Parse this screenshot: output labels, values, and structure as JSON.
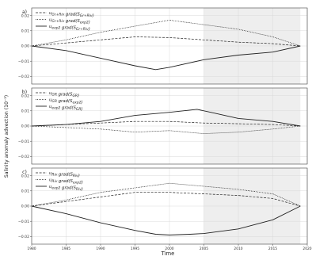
{
  "figure": {
    "ylabel": "Salinity anomaly advection (10⁻³)",
    "xlabel": "Time",
    "shade_color": "#eeeeee",
    "line_color": "#222222"
  },
  "chart_data": [
    {
      "type": "line",
      "panel_label": "a)",
      "x_range": [
        1980,
        2020
      ],
      "ylim": [
        -0.025,
        0.025
      ],
      "yticks": [
        -0.02,
        -0.01,
        0.0,
        0.01,
        0.02
      ],
      "ytick_labels": [
        "−0.02",
        "−0.01",
        "0.00",
        "0.01",
        "0.02"
      ],
      "grid": true,
      "shaded_x": [
        2005,
        2019
      ],
      "legend_position": "upper-left",
      "series": [
        {
          "name": "u_{Gr+Riv} grad(S_{Gr+Riv})",
          "style": "dashed",
          "x": [
            1980,
            1985,
            1990,
            1995,
            2000,
            2005,
            2010,
            2015,
            2019
          ],
          "y": [
            0.0,
            0.002,
            0.004,
            0.006,
            0.0055,
            0.004,
            0.0025,
            0.0015,
            0.0
          ]
        },
        {
          "name": "u_{Gr+Riv} grad(S_{exp2})",
          "style": "dotted",
          "x": [
            1980,
            1985,
            1990,
            1995,
            2000,
            2005,
            2010,
            2015,
            2019
          ],
          "y": [
            0.0,
            0.004,
            0.009,
            0.013,
            0.017,
            0.014,
            0.011,
            0.006,
            0.0
          ]
        },
        {
          "name": "u_{exp2} grad(S_{Gr+Riv})",
          "style": "solid",
          "x": [
            1980,
            1985,
            1990,
            1995,
            1998,
            2000,
            2005,
            2010,
            2015,
            2019
          ],
          "y": [
            0.0,
            -0.003,
            -0.008,
            -0.013,
            -0.0155,
            -0.014,
            -0.009,
            -0.006,
            -0.004,
            0.0
          ]
        }
      ]
    },
    {
      "type": "line",
      "panel_label": "b)",
      "x_range": [
        1980,
        2020
      ],
      "ylim": [
        -0.025,
        0.025
      ],
      "yticks": [
        -0.02,
        -0.01,
        0.0,
        0.01,
        0.02
      ],
      "ytick_labels": [
        "−0.02",
        "−0.01",
        "0.00",
        "0.01",
        "0.02"
      ],
      "grid": true,
      "shaded_x": [
        2005,
        2019
      ],
      "legend_position": "upper-left",
      "series": [
        {
          "name": "u_{GR} grad(S_{GR})",
          "style": "dashed",
          "x": [
            1980,
            1985,
            1990,
            1995,
            2000,
            2005,
            2010,
            2015,
            2019
          ],
          "y": [
            0.0,
            0.001,
            0.002,
            0.003,
            0.003,
            0.002,
            0.0015,
            0.001,
            0.0
          ]
        },
        {
          "name": "u_{GR} grad(S_{exp2})",
          "style": "dotted",
          "x": [
            1980,
            1985,
            1990,
            1995,
            2000,
            2005,
            2010,
            2015,
            2019
          ],
          "y": [
            0.0,
            -0.001,
            -0.002,
            -0.004,
            -0.003,
            -0.005,
            -0.004,
            -0.002,
            0.0
          ]
        },
        {
          "name": "u_{exp2} grad(S_{GR})",
          "style": "solid",
          "x": [
            1980,
            1985,
            1990,
            1995,
            2000,
            2004,
            2006,
            2010,
            2015,
            2019
          ],
          "y": [
            0.0,
            0.001,
            0.003,
            0.007,
            0.009,
            0.011,
            0.009,
            0.005,
            0.003,
            0.0
          ]
        }
      ]
    },
    {
      "type": "line",
      "panel_label": "c)",
      "x_range": [
        1980,
        2020
      ],
      "ylim": [
        -0.025,
        0.025
      ],
      "yticks": [
        -0.02,
        -0.01,
        0.0,
        0.01,
        0.02
      ],
      "ytick_labels": [
        "−0.02",
        "−0.01",
        "0.00",
        "0.01",
        "0.02"
      ],
      "xticks": [
        1980,
        1985,
        1990,
        1995,
        2000,
        2005,
        2010,
        2015,
        2020
      ],
      "xtick_labels": [
        "1980",
        "1985",
        "1990",
        "1995",
        "2000",
        "2005",
        "2010",
        "2015",
        "2020"
      ],
      "grid": true,
      "shaded_x": [
        2005,
        2019
      ],
      "legend_position": "upper-left",
      "series": [
        {
          "name": "u_{Riv} grad(S_{Riv})",
          "style": "dashed",
          "x": [
            1980,
            1985,
            1990,
            1995,
            2000,
            2005,
            2010,
            2015,
            2019
          ],
          "y": [
            0.0,
            0.003,
            0.006,
            0.009,
            0.009,
            0.008,
            0.007,
            0.005,
            0.0
          ]
        },
        {
          "name": "u_{Riv} grad(S_{exp2})",
          "style": "dotted",
          "x": [
            1980,
            1985,
            1990,
            1995,
            2000,
            2005,
            2010,
            2015,
            2019
          ],
          "y": [
            0.0,
            0.004,
            0.009,
            0.012,
            0.015,
            0.013,
            0.011,
            0.008,
            0.0
          ]
        },
        {
          "name": "u_{exp2} grad(S_{Riv})",
          "style": "solid",
          "x": [
            1980,
            1985,
            1990,
            1995,
            1998,
            2000,
            2003,
            2005,
            2010,
            2015,
            2019
          ],
          "y": [
            0.0,
            -0.005,
            -0.011,
            -0.016,
            -0.0185,
            -0.019,
            -0.0185,
            -0.018,
            -0.015,
            -0.009,
            0.0
          ]
        }
      ]
    }
  ]
}
